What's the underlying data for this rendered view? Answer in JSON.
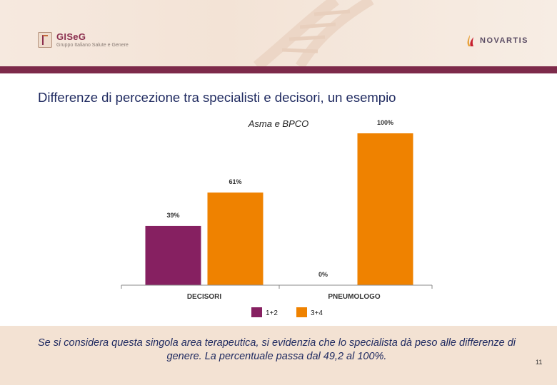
{
  "header": {
    "left_logo": {
      "name": "GISeG",
      "subtitle": "Gruppo Italiano Salute e Genere"
    },
    "right_logo": {
      "name": "NOVARTIS"
    }
  },
  "slide": {
    "title": "Differenze di percezione tra specialisti e decisori, un esempio",
    "footer_text": "Se si considera questa singola area terapeutica, si evidenzia che lo specialista dà peso alle differenze di genere. La percentuale passa dal 49,2 al 100%.",
    "page_number": "11"
  },
  "colors": {
    "band": "#7d2a4a",
    "series_1": "#862061",
    "series_2": "#ef8200",
    "title": "#1f2a60"
  },
  "chart_data": {
    "type": "bar",
    "title": "Asma e BPCO",
    "categories": [
      "DECISORI",
      "PNEUMOLOGO"
    ],
    "series": [
      {
        "name": "1+2",
        "values": [
          39,
          0
        ],
        "labels": [
          "39%",
          "0%"
        ]
      },
      {
        "name": "3+4",
        "values": [
          61,
          100
        ],
        "labels": [
          "61%",
          "100%"
        ]
      }
    ],
    "ylim": [
      0,
      100
    ],
    "xlabel": "",
    "ylabel": "",
    "grid": false,
    "legend": "bottom"
  }
}
